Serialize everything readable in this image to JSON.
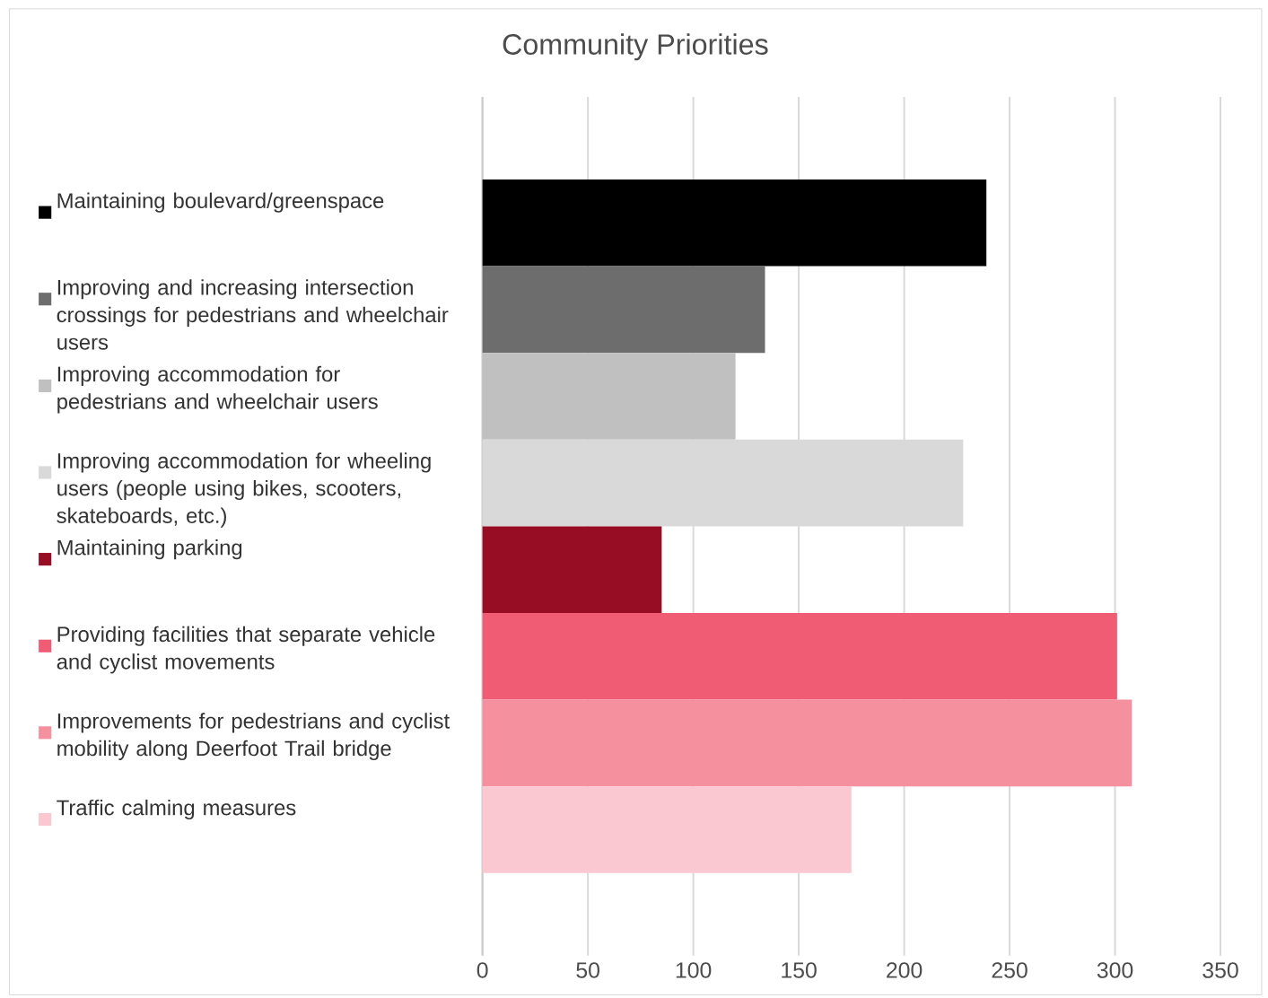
{
  "chart_data": {
    "type": "bar",
    "orientation": "horizontal",
    "title": "Community Priorities",
    "categories": [
      null
    ],
    "series": [
      {
        "name": "Maintaining boulevard/greenspace",
        "color": "#000000",
        "values": [
          239
        ]
      },
      {
        "name": "Improving and increasing intersection crossings for pedestrians and wheelchair users",
        "color": "#6d6d6d",
        "values": [
          134
        ]
      },
      {
        "name": "Improving accommodation for pedestrians and wheelchair users",
        "color": "#c0c0c0",
        "values": [
          120
        ]
      },
      {
        "name": "Improving accommodation for wheeling users (people using bikes, scooters, skateboards, etc.)",
        "color": "#d9d9d9",
        "values": [
          228
        ]
      },
      {
        "name": "Maintaining parking",
        "color": "#970d24",
        "values": [
          85
        ]
      },
      {
        "name": "Providing facilities that separate vehicle and cyclist movements",
        "color": "#f05c74",
        "values": [
          301
        ]
      },
      {
        "name": "Improvements for pedestrians and cyclist mobility along Deerfoot Trail bridge",
        "color": "#f5909f",
        "values": [
          308
        ]
      },
      {
        "name": "Traffic calming measures",
        "color": "#fac8d0",
        "values": [
          175
        ]
      }
    ],
    "xlim": [
      0,
      350
    ],
    "xticks": [
      0,
      50,
      100,
      150,
      200,
      250,
      300,
      350
    ],
    "grid": "x",
    "legend": "left"
  }
}
